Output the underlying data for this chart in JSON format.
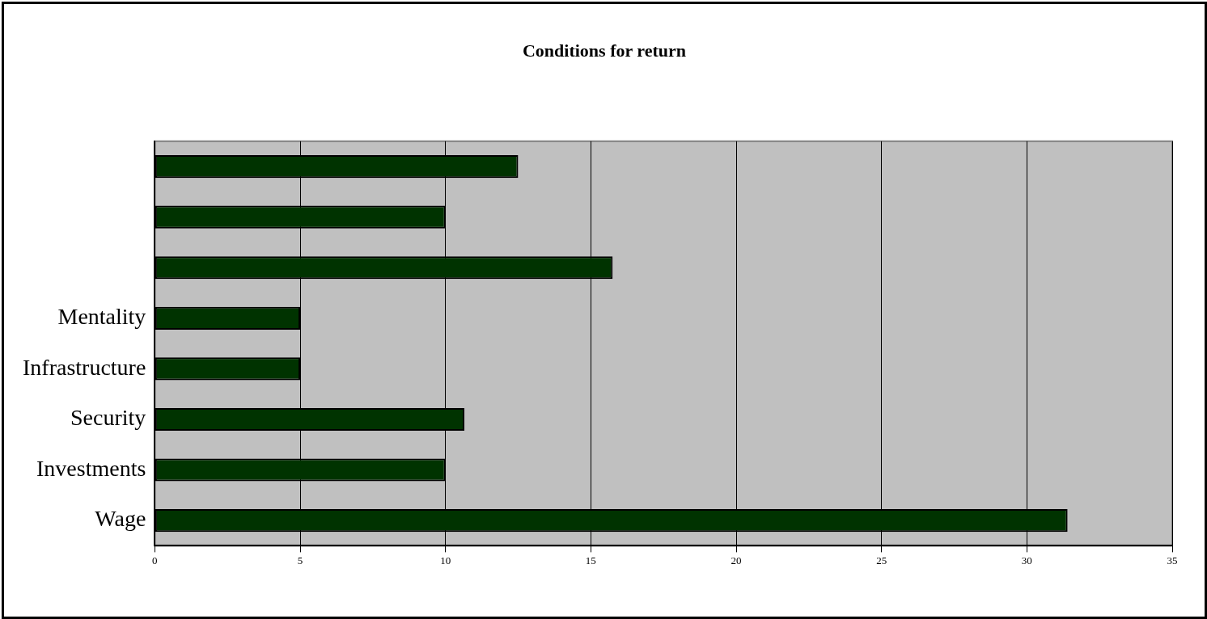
{
  "chart_data": {
    "type": "bar",
    "orientation": "horizontal",
    "title": "Conditions for return",
    "categories": [
      null,
      null,
      null,
      "Mentality",
      "Infrastructure",
      "Security",
      "Investments",
      "Wage"
    ],
    "values": [
      12.5,
      10,
      15.75,
      5,
      5,
      10.65,
      10,
      31.4
    ],
    "color": "#003300",
    "xlim": [
      0,
      35
    ],
    "xticks": [
      0,
      5,
      10,
      15,
      20,
      25,
      30,
      35
    ],
    "grid": "x",
    "legend": false
  }
}
